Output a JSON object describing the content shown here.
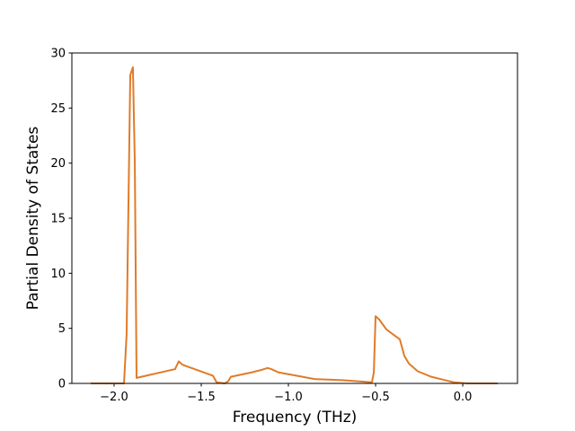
{
  "chart_data": {
    "type": "line",
    "xlabel": "Frequency (THz)",
    "ylabel": "Partial Density of States",
    "x": [
      -2.134,
      -1.943,
      -1.928,
      -1.907,
      -1.892,
      -1.881,
      -1.871,
      -1.65,
      -1.629,
      -1.608,
      -1.433,
      -1.412,
      -1.366,
      -1.345,
      -1.33,
      -1.211,
      -1.16,
      -1.119,
      -1.098,
      -1.057,
      -0.954,
      -0.851,
      -0.696,
      -0.521,
      -0.51,
      -0.5,
      -0.479,
      -0.438,
      -0.361,
      -0.335,
      -0.309,
      -0.258,
      -0.18,
      -0.103,
      -0.052,
      0.026,
      0.201
    ],
    "series": [
      {
        "color": "#e07b29",
        "values": [
          0,
          0,
          4.5,
          28,
          28.7,
          20,
          0.5,
          1.3,
          2.0,
          1.7,
          0.7,
          0.1,
          0,
          0.2,
          0.6,
          1.0,
          1.2,
          1.4,
          1.3,
          1.0,
          0.7,
          0.4,
          0.3,
          0.1,
          1.0,
          6.1,
          5.8,
          4.9,
          4.0,
          2.5,
          1.8,
          1.1,
          0.6,
          0.3,
          0.1,
          0,
          0
        ]
      }
    ],
    "xlim": [
      -2.242,
      0.314
    ],
    "xticks": [
      {
        "value": -2.0,
        "label": "−2.0"
      },
      {
        "value": -1.5,
        "label": "−1.5"
      },
      {
        "value": -1.0,
        "label": "−1.0"
      },
      {
        "value": -0.5,
        "label": "−0.5"
      },
      {
        "value": 0.0,
        "label": "0.0"
      }
    ],
    "ylim": [
      0,
      30
    ],
    "yticks": [
      0,
      5,
      10,
      15,
      20,
      25,
      30
    ],
    "grid": false
  }
}
